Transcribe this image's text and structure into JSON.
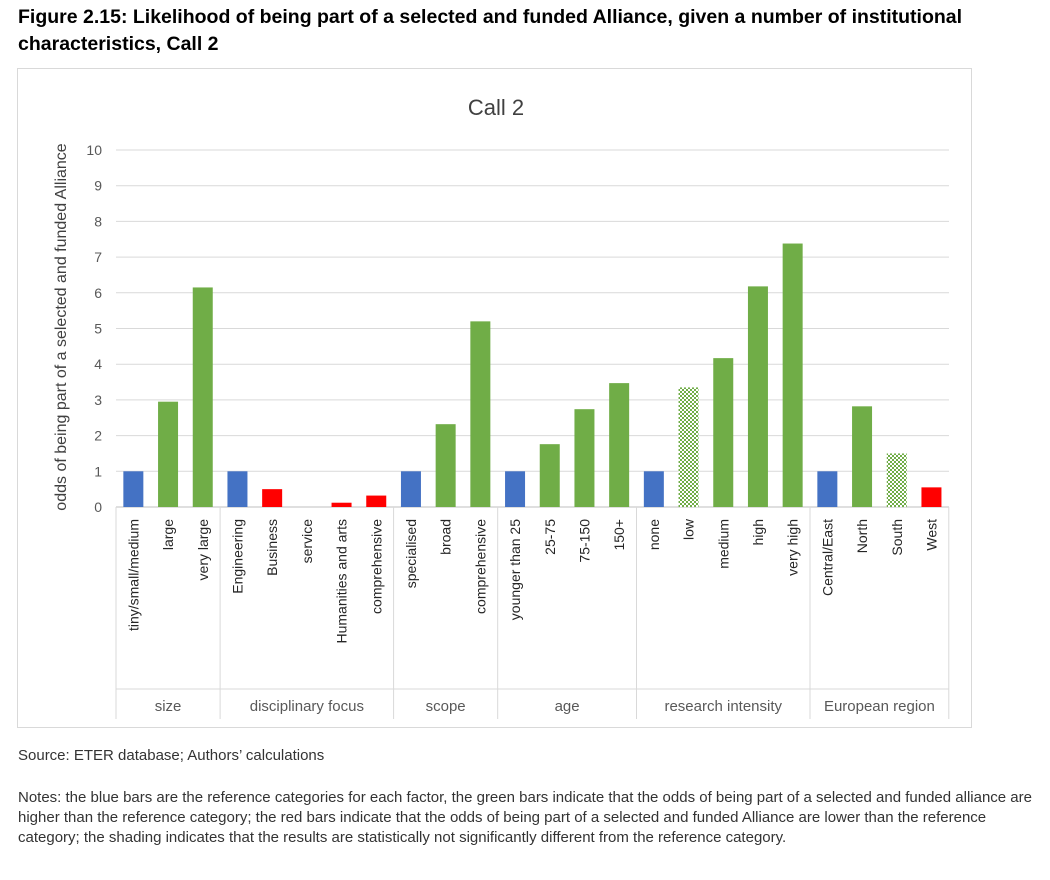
{
  "figure": {
    "title": "Figure 2.15: Likelihood of being part of a selected and funded Alliance, given a number of institutional characteristics, Call 2",
    "source": "Source: ETER database; Authors’ calculations",
    "notes": "Notes: the blue bars are the reference categories for each factor, the green bars indicate that the odds of being part of a selected and funded alliance are higher than the reference category; the red bars indicate that the odds of being part of a selected and funded Alliance are lower than the reference category; the shading indicates that the results are statistically not significantly different from the reference category."
  },
  "colors": {
    "reference": "#4472c4",
    "higher": "#70ad47",
    "lower": "#ff0000",
    "grid": "#d9d9d9",
    "axis_text": "#595959"
  },
  "chart_data": {
    "type": "bar",
    "title": "Call 2",
    "ylabel": "odds of being part of a selected and funded Alliance",
    "xlabel": "",
    "ylim": [
      0,
      10
    ],
    "yticks": [
      0,
      1,
      2,
      3,
      4,
      5,
      6,
      7,
      8,
      9,
      10
    ],
    "grid": true,
    "legend": "none",
    "groups": [
      {
        "name": "size",
        "categories": [
          {
            "label": "tiny/small/medium",
            "value": 1,
            "kind": "reference",
            "shaded": false
          },
          {
            "label": "large",
            "value": 2.95,
            "kind": "higher",
            "shaded": false
          },
          {
            "label": "very large",
            "value": 6.15,
            "kind": "higher",
            "shaded": false
          }
        ]
      },
      {
        "name": "disciplinary focus",
        "categories": [
          {
            "label": "Engineering",
            "value": 1,
            "kind": "reference",
            "shaded": false
          },
          {
            "label": "Business",
            "value": 0.5,
            "kind": "lower",
            "shaded": false
          },
          {
            "label": "service",
            "value": 0,
            "kind": "lower",
            "shaded": false
          },
          {
            "label": "Humanities and arts",
            "value": 0.12,
            "kind": "lower",
            "shaded": false
          },
          {
            "label": "comprehensive",
            "value": 0.32,
            "kind": "lower",
            "shaded": false
          }
        ]
      },
      {
        "name": "scope",
        "categories": [
          {
            "label": "specialised",
            "value": 1,
            "kind": "reference",
            "shaded": false
          },
          {
            "label": "broad",
            "value": 2.32,
            "kind": "higher",
            "shaded": false
          },
          {
            "label": "comprehensive",
            "value": 5.2,
            "kind": "higher",
            "shaded": false
          }
        ]
      },
      {
        "name": "age",
        "categories": [
          {
            "label": "younger than 25",
            "value": 1,
            "kind": "reference",
            "shaded": false
          },
          {
            "label": "25-75",
            "value": 1.76,
            "kind": "higher",
            "shaded": false
          },
          {
            "label": "75-150",
            "value": 2.74,
            "kind": "higher",
            "shaded": false
          },
          {
            "label": "150+",
            "value": 3.47,
            "kind": "higher",
            "shaded": false
          }
        ]
      },
      {
        "name": "research intensity",
        "categories": [
          {
            "label": "none",
            "value": 1,
            "kind": "reference",
            "shaded": false
          },
          {
            "label": "low",
            "value": 3.35,
            "kind": "higher",
            "shaded": true
          },
          {
            "label": "medium",
            "value": 4.17,
            "kind": "higher",
            "shaded": false
          },
          {
            "label": "high",
            "value": 6.18,
            "kind": "higher",
            "shaded": false
          },
          {
            "label": "very high",
            "value": 7.38,
            "kind": "higher",
            "shaded": false
          }
        ]
      },
      {
        "name": "European region",
        "categories": [
          {
            "label": "Central/East",
            "value": 1,
            "kind": "reference",
            "shaded": false
          },
          {
            "label": "North",
            "value": 2.82,
            "kind": "higher",
            "shaded": false
          },
          {
            "label": "South",
            "value": 1.5,
            "kind": "higher",
            "shaded": true
          },
          {
            "label": "West",
            "value": 0.55,
            "kind": "lower",
            "shaded": false
          }
        ]
      }
    ]
  }
}
